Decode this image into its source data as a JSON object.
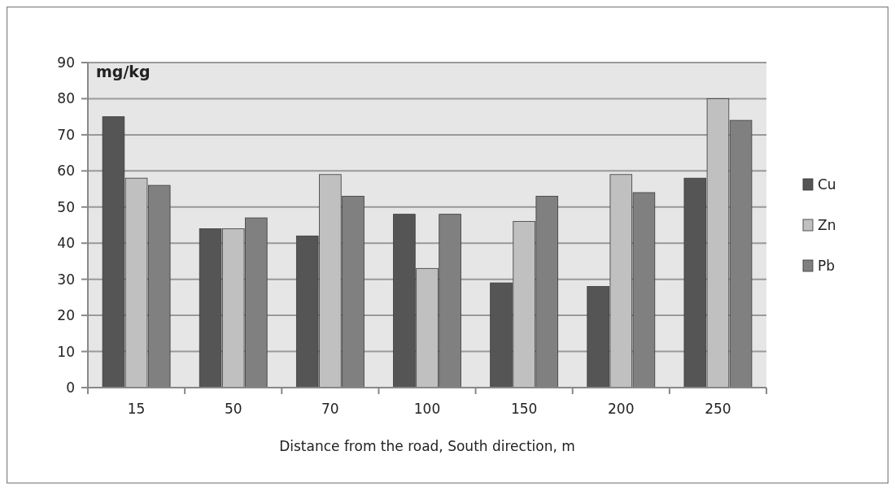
{
  "chart_data": {
    "type": "bar",
    "ylabel": "mg/kg",
    "xlabel": "Distance from the road, South direction, m",
    "categories": [
      "15",
      "50",
      "70",
      "100",
      "150",
      "200",
      "250"
    ],
    "series": [
      {
        "name": "Cu",
        "color": "#555555",
        "values": [
          75,
          44,
          42,
          48,
          29,
          28,
          58
        ]
      },
      {
        "name": "Zn",
        "color": "#c0c0c0",
        "values": [
          58,
          44,
          59,
          33,
          46,
          59,
          80
        ]
      },
      {
        "name": "Pb",
        "color": "#808080",
        "values": [
          56,
          47,
          53,
          48,
          53,
          54,
          74
        ]
      }
    ],
    "ylim": [
      0,
      90
    ],
    "yticks": [
      0,
      10,
      20,
      30,
      40,
      50,
      60,
      70,
      80,
      90
    ],
    "grid": "y",
    "legend": "right"
  }
}
